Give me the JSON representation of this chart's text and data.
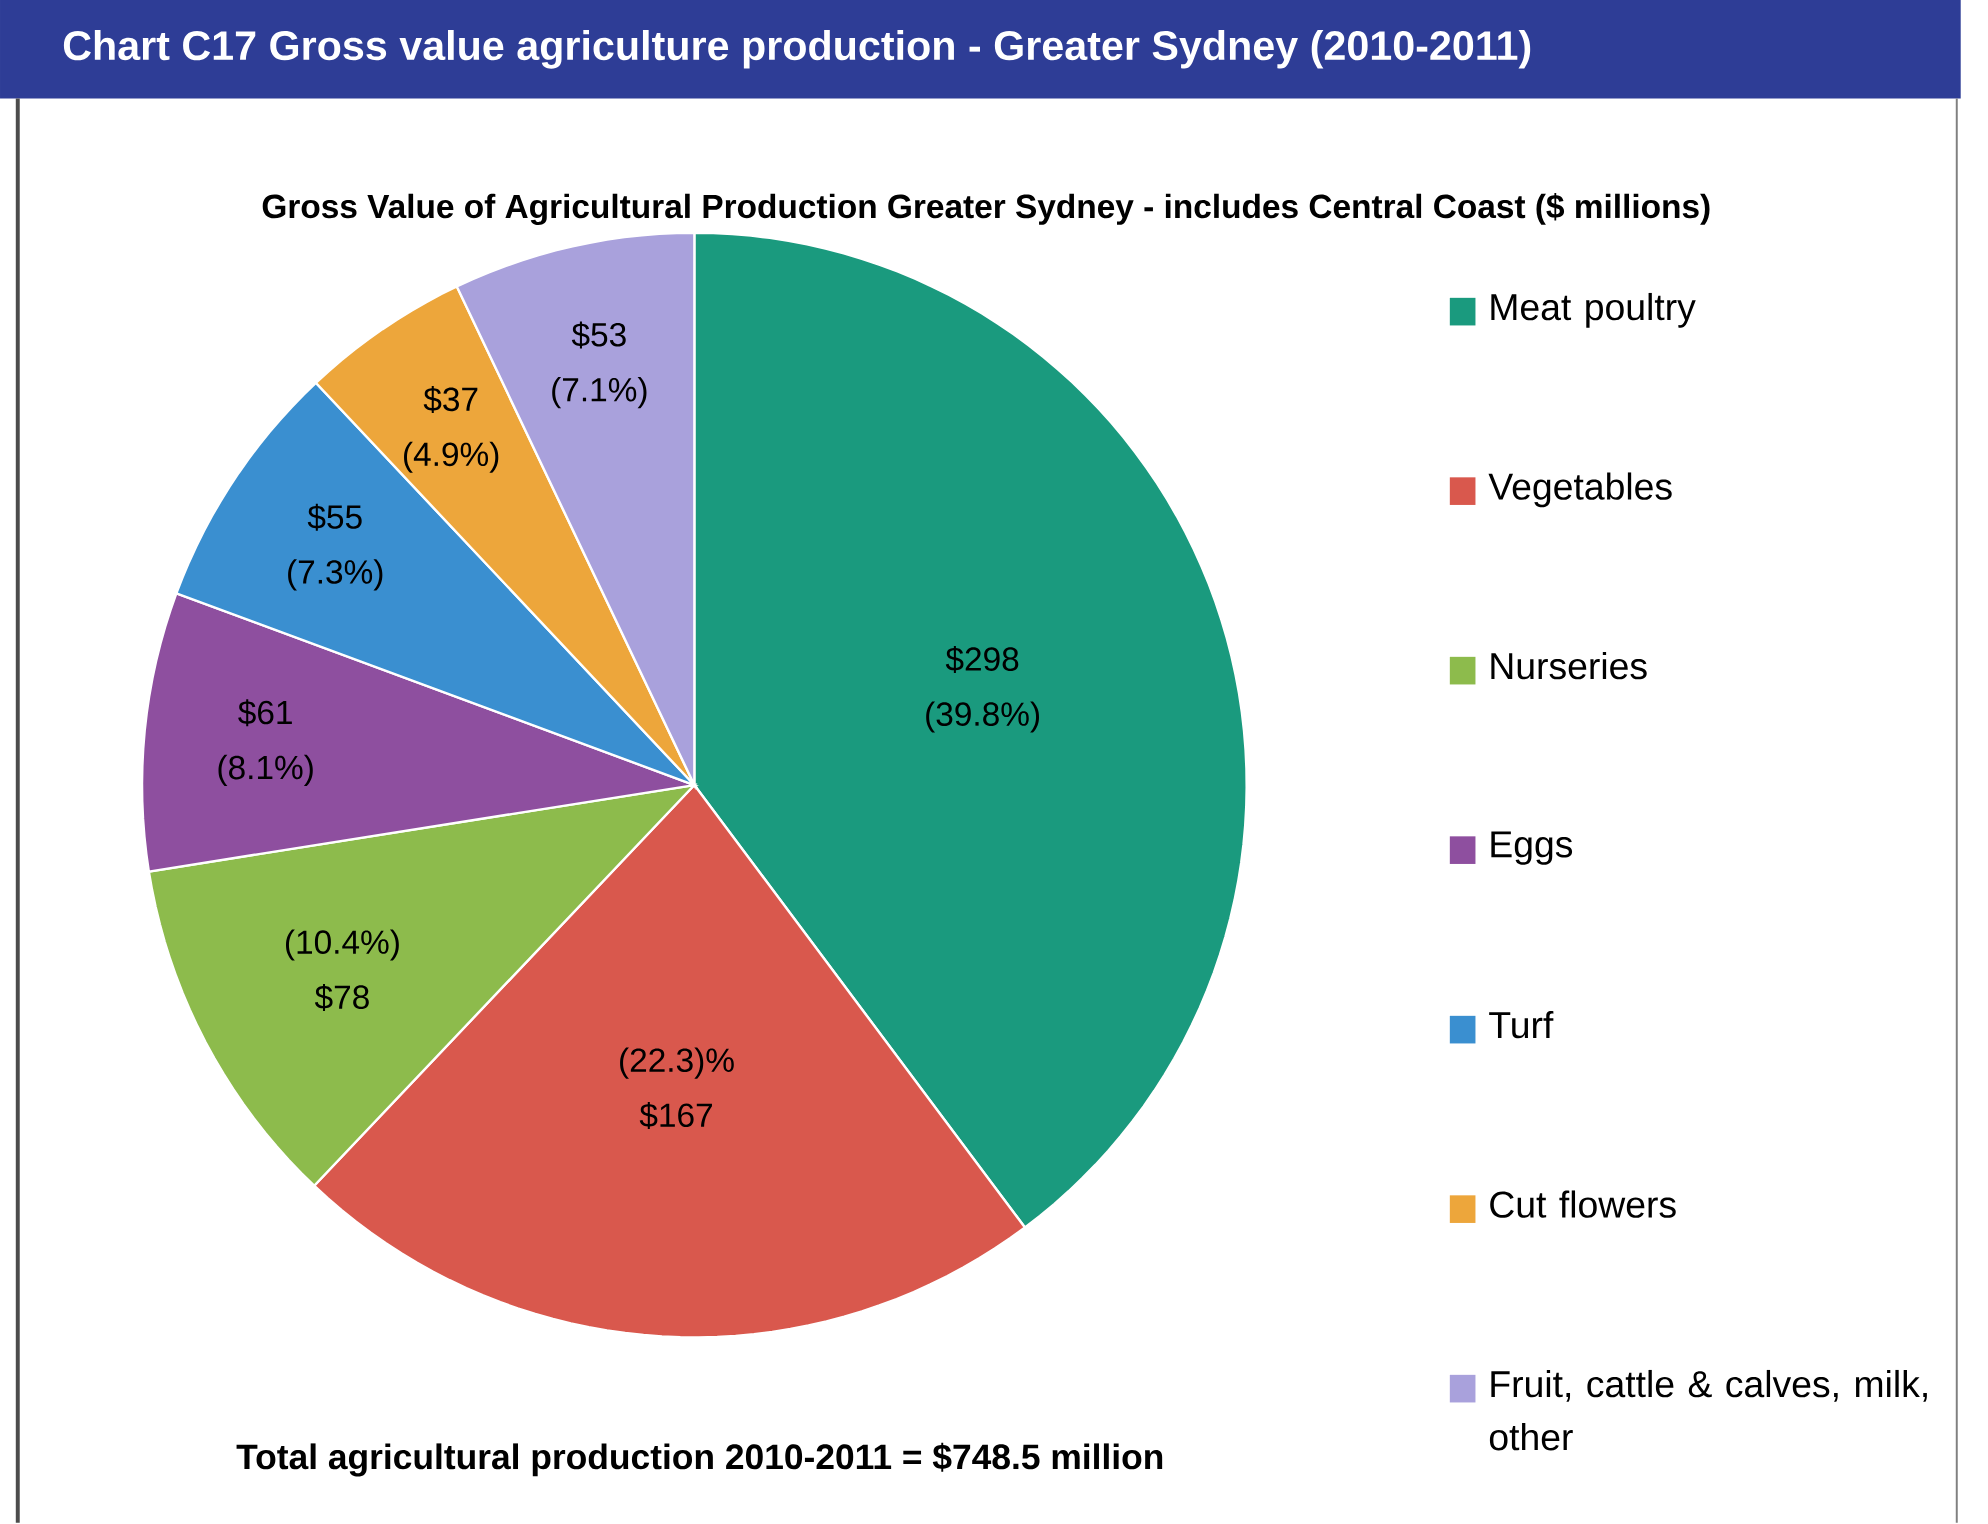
{
  "chart_data": {
    "type": "pie",
    "title": "Chart C17 Gross value agriculture production - Greater Sydney (2010-2011)",
    "subtitle": "Gross Value of Agricultural Production Greater Sydney  - includes Central Coast ($ millions)",
    "categories": [
      "Meat poultry",
      "Vegetables",
      "Nurseries",
      "Eggs",
      "Turf",
      "Cut flowers",
      "Fruit, cattle & calves, milk, other"
    ],
    "values": [
      298,
      167,
      78,
      61,
      55,
      37,
      53
    ],
    "value_labels": [
      "$298 (39.8%)",
      "(22.3)% $167",
      "(10.4%) $78",
      "$61 (8.1%)",
      "$55 (7.3%)",
      "$37 (4.9%)",
      "$53 (7.1%)"
    ],
    "colors": [
      "#1a9a7e",
      "#d9584d",
      "#8dbb4c",
      "#8e4f9f",
      "#3a8fd0",
      "#eda63b",
      "#a9a1dc"
    ],
    "legend": "right",
    "annotations": [
      "Total agricultural production 2010-2011 = $748.5 million"
    ]
  }
}
